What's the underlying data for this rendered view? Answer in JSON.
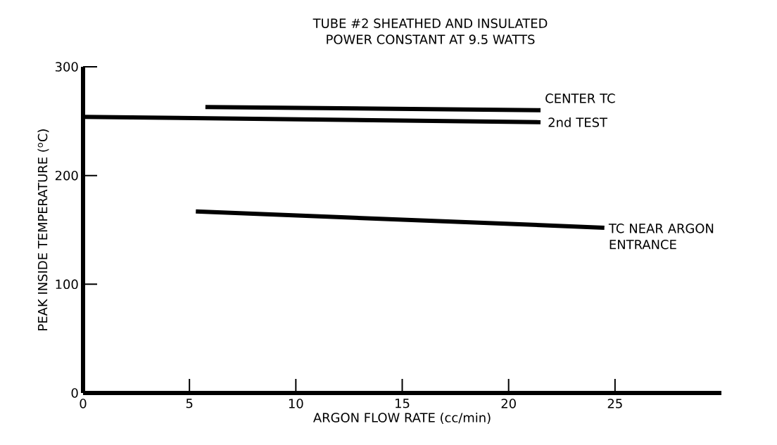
{
  "chart_data": {
    "type": "line",
    "title": "TUBE #2  SHEATHED AND INSULATED\nPOWER CONSTANT AT 9.5 WATTS",
    "xlabel": "ARGON FLOW RATE (cc/min)",
    "ylabel": "PEAK INSIDE TEMPERATURE ($^{o}$C)",
    "series": [
      {
        "name": "CENTER TC",
        "color": "#000000",
        "x": [
          5.75,
          21.5
        ],
        "values": [
          263,
          260
        ]
      },
      {
        "name": "2nd TEST",
        "color": "#000000",
        "x": [
          0,
          21.5
        ],
        "values": [
          254,
          249
        ]
      },
      {
        "name": "TC NEAR ARGON ENTRANCE",
        "color": "#000000",
        "x": [
          5.3,
          24.5
        ],
        "values": [
          167,
          152
        ]
      }
    ],
    "xlim": [
      0,
      30
    ],
    "xticks": [
      0,
      5,
      10,
      15,
      20,
      25
    ],
    "ylim": [
      0,
      300
    ],
    "yticks": [
      0,
      100,
      200,
      300
    ],
    "grid": false,
    "legend": false,
    "marker": "none",
    "line_style": "solid"
  }
}
